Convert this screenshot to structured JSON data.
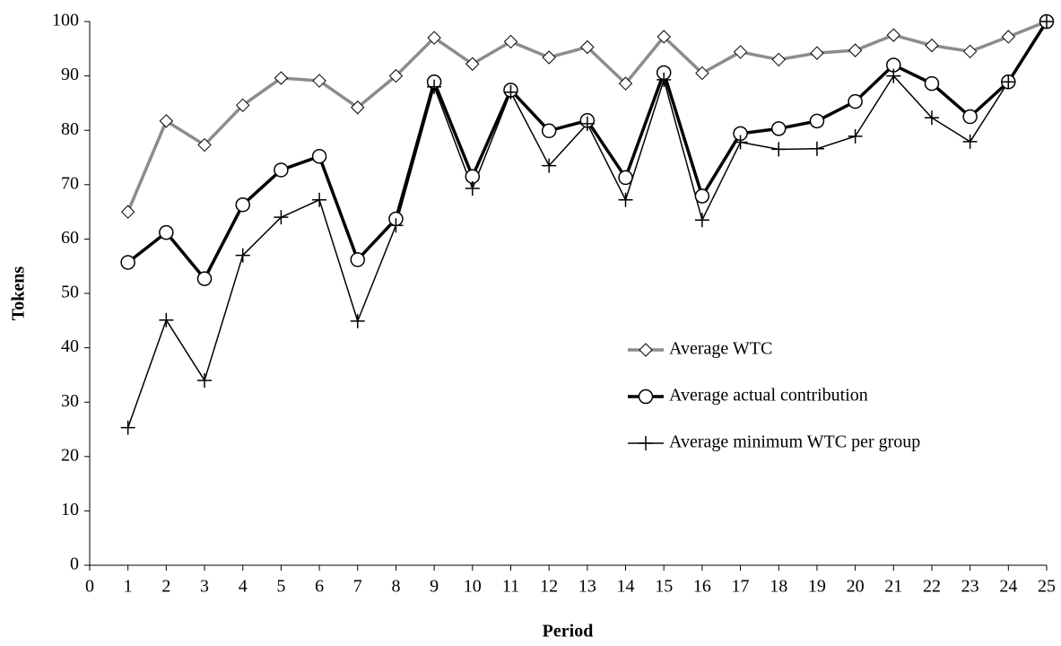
{
  "chart_data": {
    "type": "line",
    "x_label": "Period",
    "y_label": "Tokens",
    "x": [
      1,
      2,
      3,
      4,
      5,
      6,
      7,
      8,
      9,
      10,
      11,
      12,
      13,
      14,
      15,
      16,
      17,
      18,
      19,
      20,
      21,
      22,
      23,
      24,
      25
    ],
    "series": [
      {
        "name": "Average WTC",
        "color": "#8c8c8c",
        "line_width": 3.5,
        "marker": "diamond",
        "values": [
          65,
          81.7,
          77.3,
          84.6,
          89.6,
          89.1,
          84.2,
          90.0,
          97.0,
          92.2,
          96.3,
          93.4,
          95.3,
          88.6,
          97.2,
          90.5,
          94.4,
          93.0,
          94.2,
          94.7,
          97.5,
          95.6,
          94.5,
          97.2,
          100
        ]
      },
      {
        "name": "Average actual contribution",
        "color": "#000000",
        "line_width": 3.5,
        "marker": "circle",
        "values": [
          55.7,
          61.2,
          52.7,
          66.3,
          72.7,
          75.2,
          56.2,
          63.7,
          88.9,
          71.5,
          87.4,
          79.9,
          81.8,
          71.3,
          90.6,
          67.9,
          79.4,
          80.3,
          81.7,
          85.3,
          92.0,
          88.6,
          82.5,
          88.9,
          100
        ]
      },
      {
        "name": "Average minimum WTC per group",
        "color": "#000000",
        "line_width": 1.5,
        "marker": "plus",
        "values": [
          25.3,
          45.1,
          34.0,
          57.0,
          64.0,
          67.2,
          44.9,
          62.5,
          88.0,
          69.3,
          87.0,
          73.5,
          81.2,
          67.2,
          89.3,
          63.5,
          77.8,
          76.5,
          76.6,
          78.9,
          90.0,
          82.3,
          77.9,
          88.9,
          100
        ]
      }
    ],
    "xlim": [
      0,
      25
    ],
    "xticks": [
      0,
      1,
      2,
      3,
      4,
      5,
      6,
      7,
      8,
      9,
      10,
      11,
      12,
      13,
      14,
      15,
      16,
      17,
      18,
      19,
      20,
      21,
      22,
      23,
      24,
      25
    ],
    "ylim": [
      0,
      100
    ],
    "yticks": [
      0,
      10,
      20,
      30,
      40,
      50,
      60,
      70,
      80,
      90,
      100
    ],
    "grid": false,
    "legend": "center-right"
  }
}
